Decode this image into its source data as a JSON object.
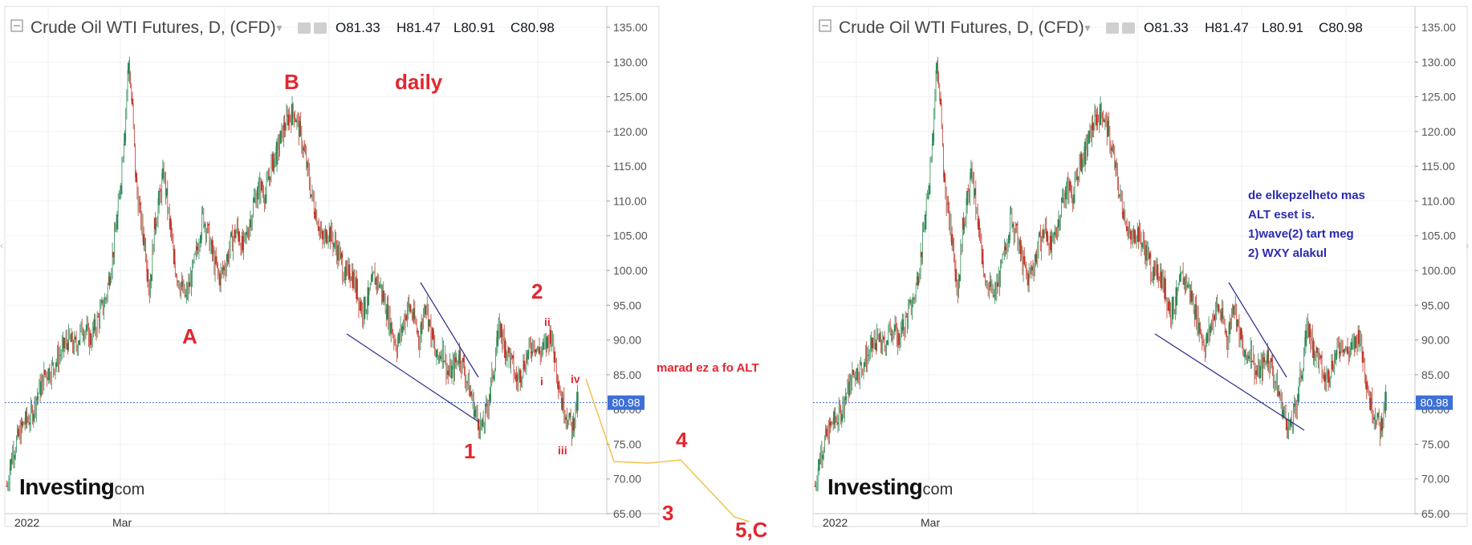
{
  "colors": {
    "up": "#2e8b57",
    "down": "#c0392b",
    "wave": "#e3262f",
    "note_blue": "#2b2bb0",
    "price_badge": "#3d6fd6",
    "projection": "#f2c14e",
    "trendline": "#2a2a8c"
  },
  "panels": [
    {
      "header": {
        "title": "Crude Oil WTI Futures, D, (CFD)",
        "open": "O81.33",
        "high": "H81.47",
        "low": "L80.91",
        "close": "C80.98"
      },
      "price_badge": "80.98",
      "x_labels": [
        "2022",
        "Mar"
      ],
      "brand": {
        "name": "Investing",
        "suffix": ".com"
      },
      "timeframe_label": "daily",
      "wave_labels": [
        {
          "text": "A",
          "size": "big"
        },
        {
          "text": "B",
          "size": "big"
        },
        {
          "text": "1",
          "size": "big"
        },
        {
          "text": "2",
          "size": "big"
        },
        {
          "text": "ii",
          "size": "small"
        },
        {
          "text": "i",
          "size": "small"
        },
        {
          "text": "iii",
          "size": "small"
        },
        {
          "text": "iv",
          "size": "small"
        },
        {
          "text": "3",
          "size": "big"
        },
        {
          "text": "4",
          "size": "big"
        },
        {
          "text": "5,C",
          "size": "big"
        }
      ],
      "note": "marad ez a fo ALT"
    },
    {
      "header": {
        "title": "Crude Oil WTI Futures, D, (CFD)",
        "open": "O81.33",
        "high": "H81.47",
        "low": "L80.91",
        "close": "C80.98"
      },
      "price_badge": "80.98",
      "x_labels": [
        "2022",
        "Mar"
      ],
      "brand": {
        "name": "Investing",
        "suffix": ".com"
      },
      "note_lines": [
        "de elkepzelheto mas",
        "ALT eset is.",
        "1)wave(2) tart meg",
        "2) WXY alakul"
      ]
    }
  ],
  "chart_data": {
    "type": "candlestick",
    "title": "Crude Oil WTI Futures, D, (CFD)",
    "ylim": [
      65,
      135
    ],
    "yticks": [
      65,
      70,
      75,
      80,
      85,
      90,
      95,
      100,
      105,
      110,
      115,
      120,
      125,
      130,
      135
    ],
    "ytick_labels": [
      "65.00",
      "70.00",
      "75.00",
      "80.00",
      "85.00",
      "90.00",
      "95.00",
      "100.00",
      "105.00",
      "110.00",
      "115.00",
      "120.00",
      "125.00",
      "130.00",
      "135.00"
    ],
    "last_price": 80.98,
    "close_path": [
      [
        0,
        69
      ],
      [
        6,
        74
      ],
      [
        12,
        76
      ],
      [
        18,
        78
      ],
      [
        25,
        79
      ],
      [
        32,
        82
      ],
      [
        40,
        85
      ],
      [
        48,
        86
      ],
      [
        56,
        88
      ],
      [
        64,
        90
      ],
      [
        72,
        89
      ],
      [
        80,
        92
      ],
      [
        88,
        90
      ],
      [
        96,
        93
      ],
      [
        104,
        96
      ],
      [
        112,
        103
      ],
      [
        118,
        110
      ],
      [
        124,
        121
      ],
      [
        128,
        130
      ],
      [
        132,
        123
      ],
      [
        136,
        112
      ],
      [
        140,
        108
      ],
      [
        146,
        103
      ],
      [
        150,
        97
      ],
      [
        155,
        106
      ],
      [
        160,
        110
      ],
      [
        165,
        114
      ],
      [
        170,
        108
      ],
      [
        176,
        101
      ],
      [
        182,
        98
      ],
      [
        188,
        96
      ],
      [
        194,
        99
      ],
      [
        200,
        103
      ],
      [
        206,
        108
      ],
      [
        212,
        105
      ],
      [
        218,
        101
      ],
      [
        224,
        99
      ],
      [
        230,
        101
      ],
      [
        236,
        104
      ],
      [
        242,
        106
      ],
      [
        248,
        103
      ],
      [
        254,
        106
      ],
      [
        260,
        110
      ],
      [
        266,
        112
      ],
      [
        272,
        111
      ],
      [
        278,
        115
      ],
      [
        284,
        117
      ],
      [
        290,
        120
      ],
      [
        296,
        122
      ],
      [
        302,
        123
      ],
      [
        308,
        120
      ],
      [
        314,
        116
      ],
      [
        320,
        111
      ],
      [
        326,
        108
      ],
      [
        332,
        104
      ],
      [
        338,
        106
      ],
      [
        344,
        104
      ],
      [
        350,
        102
      ],
      [
        356,
        99
      ],
      [
        362,
        100
      ],
      [
        368,
        97
      ],
      [
        374,
        94
      ],
      [
        380,
        96
      ],
      [
        386,
        99
      ],
      [
        392,
        98
      ],
      [
        398,
        95
      ],
      [
        404,
        92
      ],
      [
        410,
        89
      ],
      [
        416,
        92
      ],
      [
        422,
        95
      ],
      [
        428,
        93
      ],
      [
        434,
        90
      ],
      [
        440,
        96
      ],
      [
        446,
        91
      ],
      [
        452,
        87
      ],
      [
        458,
        89
      ],
      [
        464,
        85
      ],
      [
        470,
        86
      ],
      [
        476,
        88
      ],
      [
        482,
        85
      ],
      [
        488,
        82
      ],
      [
        494,
        79
      ],
      [
        500,
        77
      ],
      [
        506,
        81
      ],
      [
        512,
        86
      ],
      [
        518,
        92
      ],
      [
        524,
        89
      ],
      [
        530,
        87
      ],
      [
        536,
        84
      ],
      [
        542,
        86
      ],
      [
        548,
        88
      ],
      [
        554,
        90
      ],
      [
        560,
        88
      ],
      [
        566,
        89
      ],
      [
        572,
        91
      ],
      [
        578,
        86
      ],
      [
        584,
        81
      ],
      [
        590,
        79
      ],
      [
        594,
        77
      ],
      [
        598,
        80
      ],
      [
        600,
        81
      ]
    ],
    "annotations": [
      {
        "text": "A",
        "price": 89
      },
      {
        "text": "B",
        "price": 124
      },
      {
        "text": "1",
        "price": 76
      },
      {
        "text": "2",
        "price": 93
      }
    ]
  }
}
